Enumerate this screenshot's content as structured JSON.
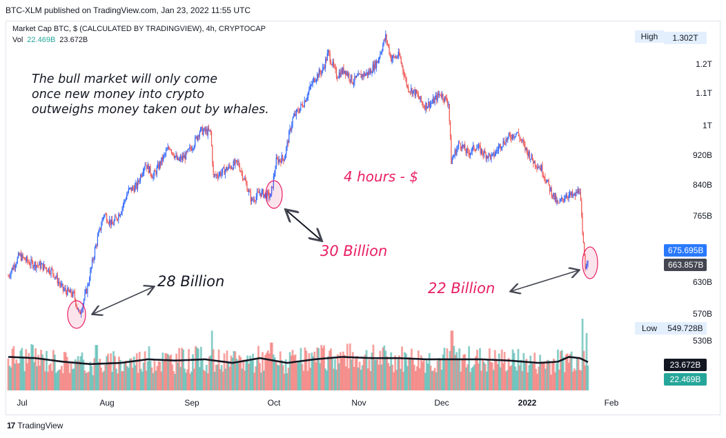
{
  "header": {
    "published": "BTC-XLM published on TradingView.com, Jan 23, 2022 11:55 UTC"
  },
  "legend": {
    "symbol": "Market Cap BTC, $ (CALCULATED BY TRADINGVIEW), 4h, CRYPTOCAP",
    "vol_label": "Vol",
    "vol_a": "22.469B",
    "vol_b": "23.672B"
  },
  "annotations": {
    "main": "The bull market will only come\nonce new money into crypto\noutweighs money taken out by whales.",
    "four_hours": "4 hours - $",
    "b30": "30 Billion",
    "b28": "28 Billion",
    "b22": "22 Billion"
  },
  "price_axis": {
    "high_label": "High",
    "high_value": "1.302T",
    "low_label": "Low",
    "low_value": "549.728B",
    "last_price": "675.695B",
    "prev_price": "663.857B",
    "vol_tag_b": "23.672B",
    "vol_tag_a": "22.469B"
  },
  "footer": {
    "brand": "TradingView"
  },
  "colors": {
    "up": "#26a69a",
    "down": "#ef5350",
    "bull_blue": "#2962ff",
    "bear_red": "#e91e63",
    "accent_pink": "#e91e63",
    "last_tag": "#2979ff",
    "prev_tag": "#434651"
  },
  "chart_data": {
    "type": "line",
    "title": "Market Cap BTC, $ (CALCULATED BY TRADINGVIEW), 4h, CRYPTOCAP",
    "y_scale": "log",
    "y_ticks": [
      {
        "label": "1.3T",
        "value": 1300
      },
      {
        "label": "1.2T",
        "value": 1200
      },
      {
        "label": "1.1T",
        "value": 1100
      },
      {
        "label": "1T",
        "value": 1000
      },
      {
        "label": "920B",
        "value": 920
      },
      {
        "label": "840B",
        "value": 840
      },
      {
        "label": "765B",
        "value": 765
      },
      {
        "label": "630B",
        "value": 630
      },
      {
        "label": "570B",
        "value": 570
      },
      {
        "label": "530B",
        "value": 530
      }
    ],
    "x_ticks": [
      {
        "label": "Jul",
        "date": "2021-07-01"
      },
      {
        "label": "Aug",
        "date": "2021-08-01"
      },
      {
        "label": "Sep",
        "date": "2021-09-01"
      },
      {
        "label": "Oct",
        "date": "2021-10-01"
      },
      {
        "label": "Nov",
        "date": "2021-11-01"
      },
      {
        "label": "Dec",
        "date": "2021-12-01"
      },
      {
        "label": "2022",
        "date": "2022-01-01",
        "bold": true
      },
      {
        "label": "Feb",
        "date": "2022-02-01"
      }
    ],
    "price_series": {
      "name": "Market Cap BTC",
      "unit": "B USD",
      "points": [
        [
          "2021-06-25",
          640
        ],
        [
          "2021-06-29",
          680
        ],
        [
          "2021-07-03",
          665
        ],
        [
          "2021-07-07",
          660
        ],
        [
          "2021-07-11",
          650
        ],
        [
          "2021-07-15",
          615
        ],
        [
          "2021-07-19",
          605
        ],
        [
          "2021-07-21",
          570
        ],
        [
          "2021-07-24",
          620
        ],
        [
          "2021-07-27",
          700
        ],
        [
          "2021-07-30",
          770
        ],
        [
          "2021-08-02",
          745
        ],
        [
          "2021-08-05",
          775
        ],
        [
          "2021-08-08",
          825
        ],
        [
          "2021-08-11",
          835
        ],
        [
          "2021-08-14",
          895
        ],
        [
          "2021-08-17",
          860
        ],
        [
          "2021-08-20",
          900
        ],
        [
          "2021-08-23",
          940
        ],
        [
          "2021-08-26",
          900
        ],
        [
          "2021-08-29",
          915
        ],
        [
          "2021-09-01",
          950
        ],
        [
          "2021-09-03",
          985
        ],
        [
          "2021-09-07",
          980
        ],
        [
          "2021-09-08",
          860
        ],
        [
          "2021-09-11",
          870
        ],
        [
          "2021-09-14",
          885
        ],
        [
          "2021-09-17",
          895
        ],
        [
          "2021-09-20",
          840
        ],
        [
          "2021-09-22",
          800
        ],
        [
          "2021-09-25",
          820
        ],
        [
          "2021-09-29",
          810
        ],
        [
          "2021-10-01",
          900
        ],
        [
          "2021-10-04",
          910
        ],
        [
          "2021-10-07",
          1020
        ],
        [
          "2021-10-11",
          1070
        ],
        [
          "2021-10-15",
          1150
        ],
        [
          "2021-10-18",
          1180
        ],
        [
          "2021-10-20",
          1240
        ],
        [
          "2021-10-23",
          1160
        ],
        [
          "2021-10-26",
          1180
        ],
        [
          "2021-10-29",
          1140
        ],
        [
          "2021-11-01",
          1160
        ],
        [
          "2021-11-04",
          1170
        ],
        [
          "2021-11-07",
          1210
        ],
        [
          "2021-11-10",
          1300
        ],
        [
          "2021-11-12",
          1220
        ],
        [
          "2021-11-15",
          1230
        ],
        [
          "2021-11-18",
          1120
        ],
        [
          "2021-11-21",
          1100
        ],
        [
          "2021-11-24",
          1060
        ],
        [
          "2021-11-27",
          1070
        ],
        [
          "2021-11-30",
          1100
        ],
        [
          "2021-12-03",
          1070
        ],
        [
          "2021-12-04",
          900
        ],
        [
          "2021-12-07",
          950
        ],
        [
          "2021-12-10",
          920
        ],
        [
          "2021-12-13",
          940
        ],
        [
          "2021-12-16",
          920
        ],
        [
          "2021-12-19",
          910
        ],
        [
          "2021-12-22",
          945
        ],
        [
          "2021-12-25",
          965
        ],
        [
          "2021-12-28",
          980
        ],
        [
          "2021-12-31",
          935
        ],
        [
          "2022-01-03",
          900
        ],
        [
          "2022-01-06",
          880
        ],
        [
          "2022-01-09",
          830
        ],
        [
          "2022-01-12",
          790
        ],
        [
          "2022-01-15",
          815
        ],
        [
          "2022-01-18",
          810
        ],
        [
          "2022-01-20",
          830
        ],
        [
          "2022-01-21",
          720
        ],
        [
          "2022-01-22",
          660
        ],
        [
          "2022-01-23",
          676
        ]
      ]
    },
    "volume_series": [
      {
        "name": "Vol",
        "last": "22.469B"
      },
      {
        "name": "Vol MA",
        "last": "23.672B"
      }
    ],
    "volume_ma_points": [
      [
        "2021-06-25",
        28
      ],
      [
        "2021-07-05",
        27
      ],
      [
        "2021-07-15",
        24
      ],
      [
        "2021-07-25",
        22
      ],
      [
        "2021-08-05",
        23
      ],
      [
        "2021-08-15",
        26
      ],
      [
        "2021-08-25",
        25
      ],
      [
        "2021-09-05",
        26
      ],
      [
        "2021-09-15",
        23
      ],
      [
        "2021-09-25",
        27
      ],
      [
        "2021-10-05",
        23
      ],
      [
        "2021-10-15",
        26
      ],
      [
        "2021-10-25",
        28
      ],
      [
        "2021-11-05",
        27
      ],
      [
        "2021-11-15",
        27
      ],
      [
        "2021-11-25",
        26
      ],
      [
        "2021-12-05",
        26
      ],
      [
        "2021-12-15",
        26
      ],
      [
        "2021-12-25",
        25
      ],
      [
        "2022-01-05",
        23
      ],
      [
        "2022-01-12",
        24
      ],
      [
        "2022-01-16",
        28
      ],
      [
        "2022-01-20",
        27
      ],
      [
        "2022-01-23",
        23.7
      ]
    ]
  }
}
